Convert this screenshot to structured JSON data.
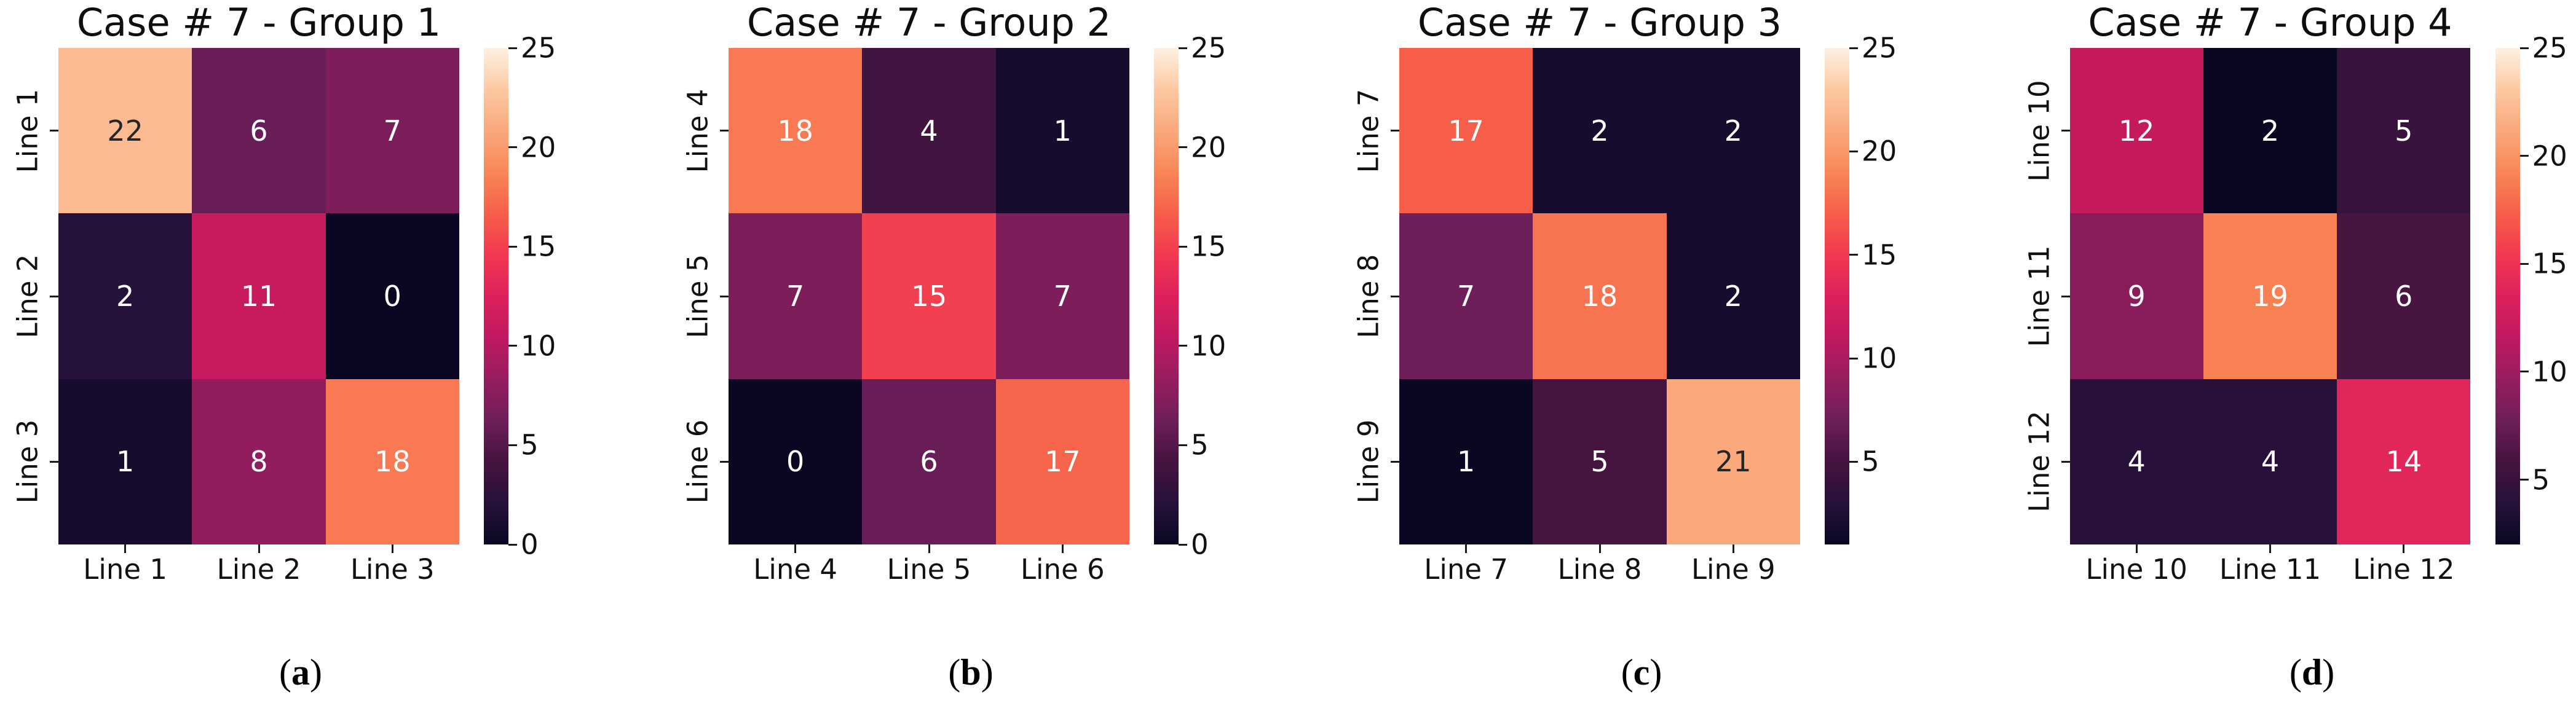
{
  "figure": {
    "background": "#ffffff",
    "text_color": "#111111",
    "tick_color": "#1a1a1a",
    "annot_light": "#ffffff",
    "annot_dark": "#262626",
    "luminance_threshold": 0.408,
    "colormap": {
      "name": "rocket",
      "anchors": [
        [
          0.0,
          "#0A0722"
        ],
        [
          0.083,
          "#26113A"
        ],
        [
          0.167,
          "#45143F"
        ],
        [
          0.25,
          "#6E1E59"
        ],
        [
          0.333,
          "#971D5E"
        ],
        [
          0.417,
          "#C01960"
        ],
        [
          0.5,
          "#DD205C"
        ],
        [
          0.583,
          "#F23851"
        ],
        [
          0.667,
          "#F75F4A"
        ],
        [
          0.75,
          "#F98756"
        ],
        [
          0.833,
          "#FAA87C"
        ],
        [
          0.917,
          "#FCC9A2"
        ],
        [
          1.0,
          "#FEF1E4"
        ]
      ]
    }
  },
  "chart_data": [
    {
      "type": "heatmap",
      "title": "Case # 7 - Group 1",
      "caption": {
        "open": "(",
        "letter": "a",
        "close": ")"
      },
      "x_labels": [
        "Line 1",
        "Line 2",
        "Line 3"
      ],
      "y_labels": [
        "Line 1",
        "Line 2",
        "Line 3"
      ],
      "values": [
        [
          22,
          6,
          7
        ],
        [
          2,
          11,
          0
        ],
        [
          1,
          8,
          18
        ]
      ],
      "vmin": 0,
      "vmax": 25,
      "colorbar_ticks": [
        0,
        5,
        10,
        15,
        20,
        25
      ],
      "legend_position": "right",
      "grid": false
    },
    {
      "type": "heatmap",
      "title": "Case # 7 - Group 2",
      "caption": {
        "open": "(",
        "letter": "b",
        "close": ")"
      },
      "x_labels": [
        "Line 4",
        "Line 5",
        "Line 6"
      ],
      "y_labels": [
        "Line 4",
        "Line 5",
        "Line 6"
      ],
      "values": [
        [
          18,
          4,
          1
        ],
        [
          7,
          15,
          7
        ],
        [
          0,
          6,
          17
        ]
      ],
      "vmin": 0,
      "vmax": 25,
      "colorbar_ticks": [
        0,
        5,
        10,
        15,
        20,
        25
      ],
      "legend_position": "right",
      "grid": false
    },
    {
      "type": "heatmap",
      "title": "Case # 7 - Group 3",
      "caption": {
        "open": "(",
        "letter": "c",
        "close": ")"
      },
      "x_labels": [
        "Line 7",
        "Line 8",
        "Line 9"
      ],
      "y_labels": [
        "Line 7",
        "Line 8",
        "Line 9"
      ],
      "values": [
        [
          17,
          2,
          2
        ],
        [
          7,
          18,
          2
        ],
        [
          1,
          5,
          21
        ]
      ],
      "vmin": 1,
      "vmax": 25,
      "colorbar_ticks": [
        5,
        10,
        15,
        20,
        25
      ],
      "legend_position": "right",
      "grid": false
    },
    {
      "type": "heatmap",
      "title": "Case # 7 - Group 4",
      "caption": {
        "open": "(",
        "letter": "d",
        "close": ")"
      },
      "x_labels": [
        "Line 10",
        "Line 11",
        "Line 12"
      ],
      "y_labels": [
        "Line 10",
        "Line 11",
        "Line 12"
      ],
      "values": [
        [
          12,
          2,
          5
        ],
        [
          9,
          19,
          6
        ],
        [
          4,
          4,
          14
        ]
      ],
      "vmin": 2,
      "vmax": 25,
      "colorbar_ticks": [
        5,
        10,
        15,
        20,
        25
      ],
      "legend_position": "right",
      "grid": false
    }
  ]
}
